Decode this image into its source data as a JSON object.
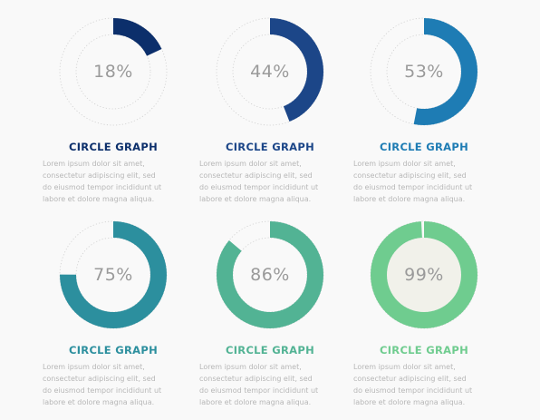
{
  "chart_data": [
    {
      "type": "pie",
      "value": 18,
      "label": "18%",
      "title": "CIRCLE GRAPH",
      "color": "#0c2f6b",
      "inner_fill": "none"
    },
    {
      "type": "pie",
      "value": 44,
      "label": "44%",
      "title": "CIRCLE GRAPH",
      "color": "#1c4688",
      "inner_fill": "none"
    },
    {
      "type": "pie",
      "value": 53,
      "label": "53%",
      "title": "CIRCLE GRAPH",
      "color": "#1e7cb4",
      "inner_fill": "none"
    },
    {
      "type": "pie",
      "value": 75,
      "label": "75%",
      "title": "CIRCLE GRAPH",
      "color": "#2c8f9e",
      "inner_fill": "none"
    },
    {
      "type": "pie",
      "value": 86,
      "label": "86%",
      "title": "CIRCLE GRAPH",
      "color": "#52b394",
      "inner_fill": "none"
    },
    {
      "type": "pie",
      "value": 99,
      "label": "99%",
      "title": "CIRCLE GRAPH",
      "color": "#6fcc8f",
      "inner_fill": "#f1f1ea"
    }
  ],
  "description": "Lorem ipsum dolor sit amet,\nconsectetur adipiscing elit, sed\ndo eiusmod tempor incididunt ut\nlabore et dolore magna aliqua.",
  "title_colors": [
    "#0c2f6b",
    "#1c4688",
    "#1e7cb4",
    "#2c8f9e",
    "#52b394",
    "#6fcc8f"
  ]
}
